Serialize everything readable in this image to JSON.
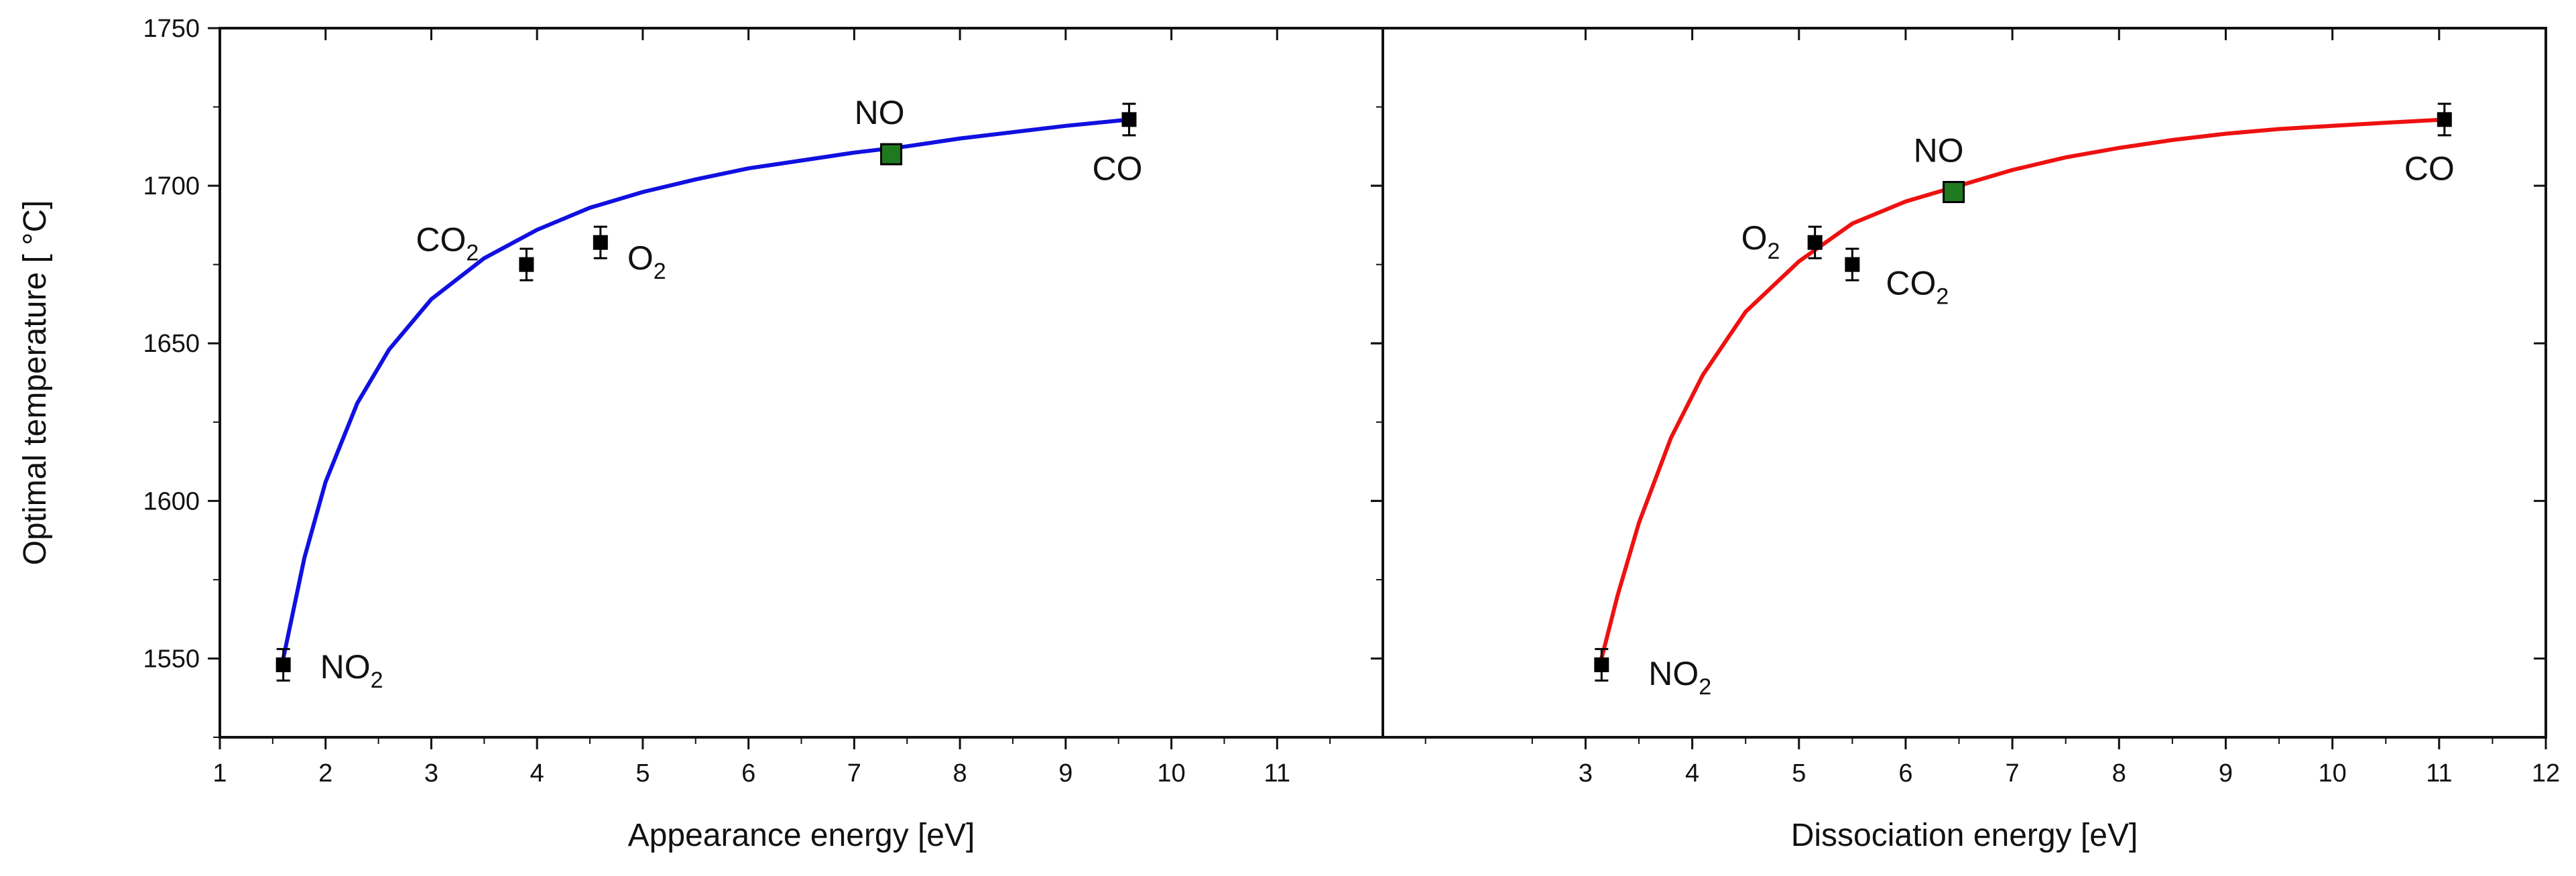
{
  "colors": {
    "axis": "#111111",
    "marker": "#000000",
    "highlight": "#1f7a1f",
    "left_curve": "#1010e0",
    "right_curve": "#ee1111"
  },
  "chart_data": [
    {
      "type": "scatter",
      "panel": "left",
      "xlabel": "Appearance energy [eV]",
      "ylabel": "Optimal temperature [ °C]",
      "xlim": [
        1,
        12
      ],
      "ylim": [
        1525,
        1750
      ],
      "x_ticks": [
        "1",
        "2",
        "3",
        "4",
        "5",
        "6",
        "7",
        "8",
        "9",
        "10",
        "11"
      ],
      "y_ticks": [
        "1550",
        "1600",
        "1650",
        "1700",
        "1750"
      ],
      "points": [
        {
          "label": "NO",
          "sub": "2",
          "x": 1.6,
          "y": 1548,
          "err": 5,
          "highlight": false
        },
        {
          "label": "CO",
          "sub": "2",
          "x": 3.9,
          "y": 1675,
          "err": 5,
          "highlight": false
        },
        {
          "label": "O",
          "sub": "2",
          "x": 4.6,
          "y": 1682,
          "err": 5,
          "highlight": false
        },
        {
          "label": "NO",
          "sub": "",
          "x": 7.35,
          "y": 1710,
          "err": 0,
          "highlight": true
        },
        {
          "label": "CO",
          "sub": "",
          "x": 9.6,
          "y": 1721,
          "err": 5,
          "highlight": false
        }
      ],
      "fit_curve": {
        "x": [
          1.6,
          1.8,
          2.0,
          2.3,
          2.6,
          3.0,
          3.5,
          4.0,
          4.5,
          5.0,
          5.5,
          6.0,
          6.5,
          7.0,
          7.5,
          8.0,
          8.5,
          9.0,
          9.6
        ],
        "y": [
          1550,
          1582,
          1606,
          1631,
          1648,
          1664,
          1677,
          1686,
          1693,
          1698,
          1702,
          1705.5,
          1708,
          1710.5,
          1712.5,
          1715,
          1717,
          1719,
          1721
        ]
      }
    },
    {
      "type": "scatter",
      "panel": "right",
      "xlabel": "Dissociation energy [eV]",
      "xlim": [
        1.1,
        12
      ],
      "ylim": [
        1525,
        1750
      ],
      "x_ticks": [
        "3",
        "4",
        "5",
        "6",
        "7",
        "8",
        "9",
        "10",
        "11",
        "12"
      ],
      "points": [
        {
          "label": "NO",
          "sub": "2",
          "x": 3.15,
          "y": 1548,
          "err": 5,
          "highlight": false
        },
        {
          "label": "O",
          "sub": "2",
          "x": 5.15,
          "y": 1682,
          "err": 5,
          "highlight": false
        },
        {
          "label": "CO",
          "sub": "2",
          "x": 5.5,
          "y": 1675,
          "err": 5,
          "highlight": false
        },
        {
          "label": "NO",
          "sub": "",
          "x": 6.45,
          "y": 1698,
          "err": 0,
          "highlight": true
        },
        {
          "label": "CO",
          "sub": "",
          "x": 11.05,
          "y": 1721,
          "err": 5,
          "highlight": false
        }
      ],
      "fit_curve": {
        "x": [
          3.15,
          3.3,
          3.5,
          3.8,
          4.1,
          4.5,
          5.0,
          5.5,
          6.0,
          6.5,
          7.0,
          7.5,
          8.0,
          8.5,
          9.0,
          9.5,
          10.0,
          10.5,
          11.05
        ],
        "y": [
          1550,
          1570,
          1593,
          1620,
          1640,
          1660,
          1676,
          1688,
          1695,
          1700,
          1705,
          1709,
          1712,
          1714.5,
          1716.5,
          1718,
          1719,
          1720,
          1721
        ]
      }
    }
  ]
}
